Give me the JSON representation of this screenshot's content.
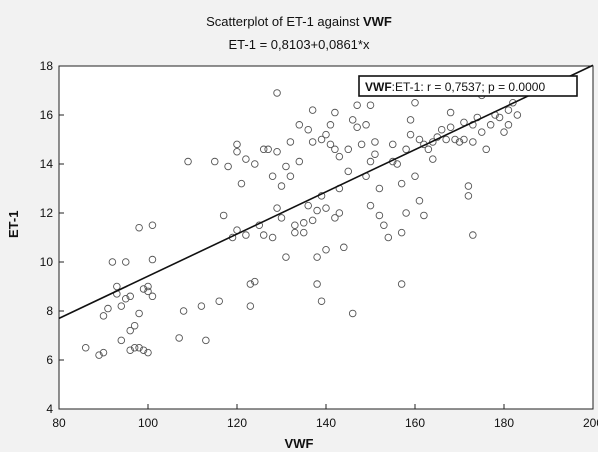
{
  "chart_data": {
    "type": "scatter",
    "title_prefix": "Scatterplot of  ET-1 against",
    "title_var": "VWF",
    "subtitle": "ET-1 = 0,8103+0,0861*x",
    "xlabel": "VWF",
    "ylabel": "ET-1",
    "xlim": [
      80,
      200
    ],
    "ylim": [
      4,
      18
    ],
    "xticks": [
      80,
      100,
      120,
      140,
      160,
      180,
      200
    ],
    "yticks": [
      4,
      6,
      8,
      10,
      12,
      14,
      16,
      18
    ],
    "grid": false,
    "legend": {
      "position": "top-right",
      "var": "VWF",
      "text": ":ET-1:   r = 0,7537; p = 0.0000"
    },
    "regression": {
      "intercept": 0.8103,
      "slope": 0.0861
    },
    "colors": {
      "point_stroke": "#555555",
      "line": "#111111",
      "plot_bg": "#ffffff",
      "page_bg": "#f2f2f2"
    },
    "points": [
      [
        86,
        6.5
      ],
      [
        89,
        6.2
      ],
      [
        90,
        6.3
      ],
      [
        90,
        7.8
      ],
      [
        91,
        8.1
      ],
      [
        92,
        10.0
      ],
      [
        93,
        8.7
      ],
      [
        93,
        9.0
      ],
      [
        94,
        8.2
      ],
      [
        94,
        6.8
      ],
      [
        95,
        10.0
      ],
      [
        95,
        8.5
      ],
      [
        96,
        8.6
      ],
      [
        96,
        7.2
      ],
      [
        96,
        6.4
      ],
      [
        97,
        7.4
      ],
      [
        97,
        6.5
      ],
      [
        98,
        6.5
      ],
      [
        98,
        7.9
      ],
      [
        98,
        11.4
      ],
      [
        99,
        8.9
      ],
      [
        99,
        6.4
      ],
      [
        100,
        6.3
      ],
      [
        100,
        9.0
      ],
      [
        100,
        8.8
      ],
      [
        101,
        8.6
      ],
      [
        101,
        11.5
      ],
      [
        101,
        10.1
      ],
      [
        107,
        6.9
      ],
      [
        108,
        8.0
      ],
      [
        109,
        14.1
      ],
      [
        112,
        8.2
      ],
      [
        113,
        6.8
      ],
      [
        115,
        14.1
      ],
      [
        116,
        8.4
      ],
      [
        117,
        11.9
      ],
      [
        119,
        11.0
      ],
      [
        120,
        14.5
      ],
      [
        120,
        11.3
      ],
      [
        120,
        14.8
      ],
      [
        122,
        11.1
      ],
      [
        122,
        14.2
      ],
      [
        123,
        8.2
      ],
      [
        123,
        9.1
      ],
      [
        124,
        9.2
      ],
      [
        124,
        14.0
      ],
      [
        125,
        11.5
      ],
      [
        126,
        14.6
      ],
      [
        126,
        11.1
      ],
      [
        127,
        14.6
      ],
      [
        128,
        11.0
      ],
      [
        128,
        13.5
      ],
      [
        129,
        12.2
      ],
      [
        129,
        14.5
      ],
      [
        129,
        16.9
      ],
      [
        130,
        11.8
      ],
      [
        130,
        13.1
      ],
      [
        131,
        10.2
      ],
      [
        131,
        13.9
      ],
      [
        132,
        13.5
      ],
      [
        133,
        11.5
      ],
      [
        133,
        11.2
      ],
      [
        134,
        15.6
      ],
      [
        134,
        14.1
      ],
      [
        135,
        11.6
      ],
      [
        135,
        11.2
      ],
      [
        136,
        12.3
      ],
      [
        137,
        14.9
      ],
      [
        137,
        16.2
      ],
      [
        137,
        11.7
      ],
      [
        138,
        9.1
      ],
      [
        138,
        12.1
      ],
      [
        138,
        10.2
      ],
      [
        139,
        8.4
      ],
      [
        139,
        12.7
      ],
      [
        139,
        15.0
      ],
      [
        140,
        10.5
      ],
      [
        140,
        12.2
      ],
      [
        140,
        15.2
      ],
      [
        141,
        14.8
      ],
      [
        141,
        15.6
      ],
      [
        142,
        14.6
      ],
      [
        142,
        16.1
      ],
      [
        142,
        11.8
      ],
      [
        143,
        12.0
      ],
      [
        143,
        13.0
      ],
      [
        144,
        10.6
      ],
      [
        145,
        13.7
      ],
      [
        145,
        14.6
      ],
      [
        146,
        15.8
      ],
      [
        146,
        7.9
      ],
      [
        147,
        15.5
      ],
      [
        147,
        16.4
      ],
      [
        148,
        14.8
      ],
      [
        149,
        15.6
      ],
      [
        149,
        13.5
      ],
      [
        150,
        12.3
      ],
      [
        150,
        14.1
      ],
      [
        150,
        16.4
      ],
      [
        151,
        14.4
      ],
      [
        151,
        14.9
      ],
      [
        152,
        11.9
      ],
      [
        152,
        13.0
      ],
      [
        153,
        11.5
      ],
      [
        154,
        11.0
      ],
      [
        155,
        14.1
      ],
      [
        155,
        14.8
      ],
      [
        156,
        14.0
      ],
      [
        157,
        9.1
      ],
      [
        157,
        11.2
      ],
      [
        157,
        13.2
      ],
      [
        158,
        14.6
      ],
      [
        158,
        12.0
      ],
      [
        159,
        15.2
      ],
      [
        159,
        15.8
      ],
      [
        160,
        13.5
      ],
      [
        160,
        16.5
      ],
      [
        161,
        15.0
      ],
      [
        161,
        12.5
      ],
      [
        162,
        11.9
      ],
      [
        162,
        14.8
      ],
      [
        163,
        14.6
      ],
      [
        164,
        14.9
      ],
      [
        165,
        15.1
      ],
      [
        166,
        15.4
      ],
      [
        167,
        15.0
      ],
      [
        168,
        16.1
      ],
      [
        168,
        15.5
      ],
      [
        169,
        15.0
      ],
      [
        170,
        14.9
      ],
      [
        171,
        15.0
      ],
      [
        171,
        15.7
      ],
      [
        172,
        13.1
      ],
      [
        172,
        12.7
      ],
      [
        173,
        11.1
      ],
      [
        173,
        14.9
      ],
      [
        174,
        15.9
      ],
      [
        175,
        16.8
      ],
      [
        175,
        15.3
      ],
      [
        176,
        14.6
      ],
      [
        177,
        15.6
      ],
      [
        178,
        16.0
      ],
      [
        179,
        15.9
      ],
      [
        180,
        15.3
      ],
      [
        181,
        15.6
      ],
      [
        181,
        16.2
      ],
      [
        182,
        16.5
      ],
      [
        183,
        16.0
      ],
      [
        173,
        15.6
      ],
      [
        164,
        14.2
      ],
      [
        136,
        15.4
      ],
      [
        132,
        14.9
      ],
      [
        118,
        13.9
      ],
      [
        121,
        13.2
      ],
      [
        143,
        14.3
      ]
    ]
  }
}
